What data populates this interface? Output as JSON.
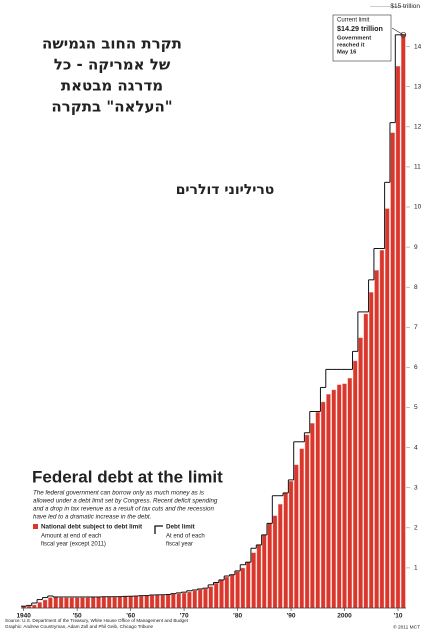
{
  "chart_data": {
    "type": "bar",
    "hebrew_title": [
      "תקרת החוב הגמישה",
      "של אמריקה - כל",
      "מדרגה מבטאת",
      "\"העלאה\" בתקרה"
    ],
    "hebrew_subtitle": "טריליוני דולרים",
    "title": "Federal debt at the limit",
    "description": [
      "The federal government can borrow only as much money as is",
      "allowed under a debt limit set by Congress. Recent deficit spending",
      "and a drop in tax revenue as a result of tax cuts and the recession",
      "have led to a dramatic increase in the debt."
    ],
    "categories": [
      "1940",
      null,
      null,
      null,
      null,
      null,
      null,
      null,
      null,
      null,
      "’50",
      null,
      null,
      null,
      null,
      null,
      null,
      null,
      null,
      null,
      "’60",
      null,
      null,
      null,
      null,
      null,
      null,
      null,
      null,
      null,
      "’70",
      null,
      null,
      null,
      null,
      null,
      null,
      null,
      null,
      null,
      "’80",
      null,
      null,
      null,
      null,
      null,
      null,
      null,
      null,
      null,
      "’90",
      null,
      null,
      null,
      null,
      null,
      null,
      null,
      null,
      null,
      "2000",
      null,
      null,
      null,
      null,
      null,
      null,
      null,
      null,
      null,
      "’10",
      null
    ],
    "series": [
      {
        "name": "National debt subject to debt limit",
        "note": [
          "Amount at end of each",
          "fiscal year (except 2011)"
        ],
        "color": "#d9362c",
        "values": [
          0.043,
          0.049,
          0.075,
          0.14,
          0.2,
          0.26,
          0.27,
          0.257,
          0.252,
          0.253,
          0.256,
          0.255,
          0.259,
          0.266,
          0.271,
          0.274,
          0.273,
          0.271,
          0.276,
          0.285,
          0.287,
          0.289,
          0.299,
          0.306,
          0.312,
          0.317,
          0.32,
          0.327,
          0.35,
          0.356,
          0.373,
          0.399,
          0.428,
          0.459,
          0.476,
          0.534,
          0.621,
          0.7,
          0.772,
          0.827,
          0.908,
          0.998,
          1.142,
          1.377,
          1.572,
          1.823,
          2.111,
          2.3,
          2.586,
          2.868,
          3.161,
          3.569,
          3.972,
          4.315,
          4.605,
          4.884,
          5.137,
          5.328,
          5.439,
          5.567,
          5.592,
          5.732,
          6.161,
          6.737,
          7.333,
          7.871,
          8.42,
          8.921,
          9.96,
          11.853,
          13.51,
          14.29
        ]
      },
      {
        "name": "Debt limit",
        "note": [
          "At end of each",
          "fiscal year"
        ],
        "color": "#111111",
        "values": [
          0.045,
          0.065,
          0.125,
          0.21,
          0.26,
          0.3,
          0.275,
          0.275,
          0.275,
          0.275,
          0.275,
          0.275,
          0.275,
          0.275,
          0.275,
          0.281,
          0.281,
          0.281,
          0.283,
          0.29,
          0.293,
          0.298,
          0.308,
          0.309,
          0.324,
          0.328,
          0.33,
          0.336,
          0.358,
          0.377,
          0.395,
          0.43,
          0.45,
          0.475,
          0.495,
          0.577,
          0.636,
          0.7,
          0.798,
          0.83,
          0.925,
          1.079,
          1.143,
          1.49,
          1.573,
          1.824,
          2.111,
          2.8,
          2.8,
          2.87,
          3.195,
          4.145,
          4.145,
          4.37,
          4.9,
          4.9,
          5.5,
          5.95,
          5.95,
          5.95,
          5.95,
          5.95,
          6.4,
          7.384,
          7.384,
          8.184,
          8.965,
          8.965,
          10.615,
          12.104,
          14.294,
          14.294
        ]
      }
    ],
    "ylim": [
      0,
      15
    ],
    "yticks": [
      1,
      2,
      3,
      4,
      5,
      6,
      7,
      8,
      9,
      10,
      11,
      12,
      13,
      14,
      {
        "value": 15,
        "label": "$15 trillion"
      }
    ],
    "annotation": [
      "Current limit",
      "$14.29 trillion",
      "Government",
      "reached it",
      "May 16"
    ],
    "source": [
      "Source: U.S. Department of the Treasury, White House Office of Management and Budget",
      "Graphic: Andrew Countryman, Adam Zoll and Phil Geib, Chicago Tribune"
    ],
    "credit": "© 2011 MCT"
  }
}
